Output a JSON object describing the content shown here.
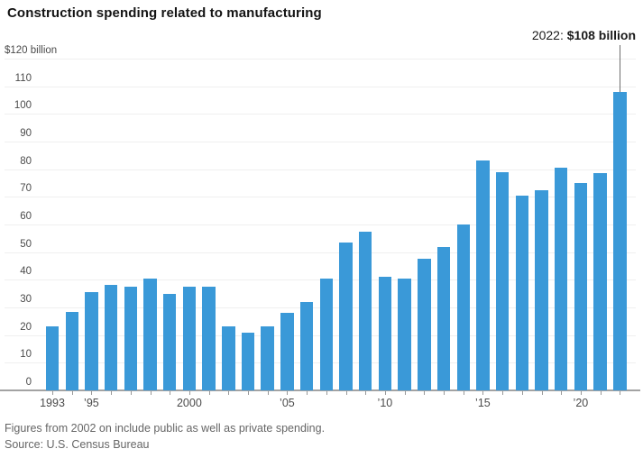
{
  "header": {
    "title": "Construction spending related to manufacturing"
  },
  "annotation": {
    "prefix": "2022: ",
    "value": "$108 billion"
  },
  "footer": {
    "note": "Figures from 2002 on include public as well as private spending.",
    "source": "Source: U.S. Census Bureau"
  },
  "colors": {
    "bar": "#3A99D8",
    "grid": "#efefef",
    "axis": "#a3a3a3",
    "tick": "#999999",
    "axis_label": "#4b4b4b",
    "title": "#141414",
    "annotation": "#1a1a1a",
    "callout": "#6e6e6e",
    "footnote": "#666666"
  },
  "chart_data": {
    "type": "bar",
    "title": "Construction spending related to manufacturing",
    "xlabel": "",
    "ylabel": "$ billion",
    "ylim": [
      0,
      120
    ],
    "grid": true,
    "legend": false,
    "categories": [
      1993,
      1994,
      1995,
      1996,
      1997,
      1998,
      1999,
      2000,
      2001,
      2002,
      2003,
      2004,
      2005,
      2006,
      2007,
      2008,
      2009,
      2010,
      2011,
      2012,
      2013,
      2014,
      2015,
      2016,
      2017,
      2018,
      2019,
      2020,
      2021,
      2022
    ],
    "values": [
      23,
      28.5,
      35.5,
      38,
      37.5,
      40.5,
      35,
      37.5,
      37.5,
      23,
      21,
      23,
      28,
      32,
      40.5,
      53.5,
      57.5,
      41,
      40.5,
      47.5,
      52,
      60,
      83,
      79,
      70.5,
      72.5,
      80.5,
      75,
      78.5,
      108
    ],
    "yticks": [
      {
        "value": 0,
        "label": "0"
      },
      {
        "value": 10,
        "label": "10"
      },
      {
        "value": 20,
        "label": "20"
      },
      {
        "value": 30,
        "label": "30"
      },
      {
        "value": 40,
        "label": "40"
      },
      {
        "value": 50,
        "label": "50"
      },
      {
        "value": 60,
        "label": "60"
      },
      {
        "value": 70,
        "label": "70"
      },
      {
        "value": 80,
        "label": "80"
      },
      {
        "value": 90,
        "label": "90"
      },
      {
        "value": 100,
        "label": "100"
      },
      {
        "value": 110,
        "label": "110"
      },
      {
        "value": 120,
        "label": "$120 billion"
      }
    ],
    "xticks": [
      {
        "category": 1993,
        "label": "1993"
      },
      {
        "category": 1995,
        "label": "’95"
      },
      {
        "category": 2000,
        "label": "2000"
      },
      {
        "category": 2005,
        "label": "’05"
      },
      {
        "category": 2010,
        "label": "’10"
      },
      {
        "category": 2015,
        "label": "’15"
      },
      {
        "category": 2020,
        "label": "’20"
      }
    ],
    "annotation": {
      "category": 2022,
      "text": "2022: $108 billion"
    }
  }
}
